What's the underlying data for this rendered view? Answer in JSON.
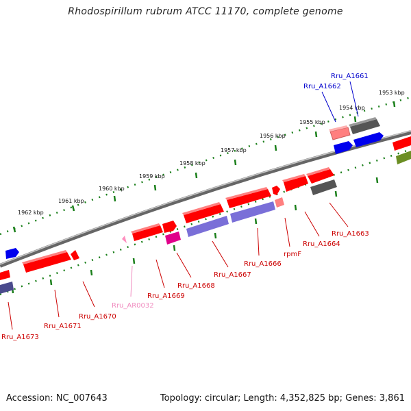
{
  "title": "Rhodospirillum rubrum ATCC 11170, complete genome",
  "footer": {
    "accession": "Accession: NC_007643",
    "topology": "Topology: circular; Length: 4,352,825 bp; Genes: 3,861"
  },
  "colors": {
    "forward_gene": "#ff0000",
    "reverse_gene": "#ff0000",
    "rna": "#ff8fbf",
    "pseudo": "#ff7f7f",
    "cds_blue": "#0000ee",
    "cds_purple": "#7a6fd8",
    "cds_grey": "#555555",
    "cds_olive": "#6b8e23",
    "cds_magenta": "#e0008a",
    "tick": "#1a7f1a",
    "backbone": "#7a7a7a"
  },
  "kbp_ticks": [
    "1953 kbp",
    "1954 kbp",
    "1955 kbp",
    "1956 kbp",
    "1957 kbp",
    "1958 kbp",
    "1959 kbp",
    "1960 kbp",
    "1961 kbp",
    "1962 kbp"
  ],
  "gene_labels": [
    {
      "name": "Rru_A1661",
      "color": "#0000cc"
    },
    {
      "name": "Rru_A1662",
      "color": "#0000cc"
    },
    {
      "name": "Rru_A1663",
      "color": "#cc0000"
    },
    {
      "name": "Rru_A1664",
      "color": "#cc0000"
    },
    {
      "name": "rpmF",
      "color": "#cc0000"
    },
    {
      "name": "Rru_A1666",
      "color": "#cc0000"
    },
    {
      "name": "Rru_A1667",
      "color": "#cc0000"
    },
    {
      "name": "Rru_A1668",
      "color": "#cc0000"
    },
    {
      "name": "Rru_A1669",
      "color": "#cc0000"
    },
    {
      "name": "Rru_AR0032",
      "color": "#f08cbf"
    },
    {
      "name": "Rru_A1670",
      "color": "#cc0000"
    },
    {
      "name": "Rru_A1671",
      "color": "#cc0000"
    },
    {
      "name": "Rru_A1673",
      "color": "#cc0000"
    }
  ]
}
